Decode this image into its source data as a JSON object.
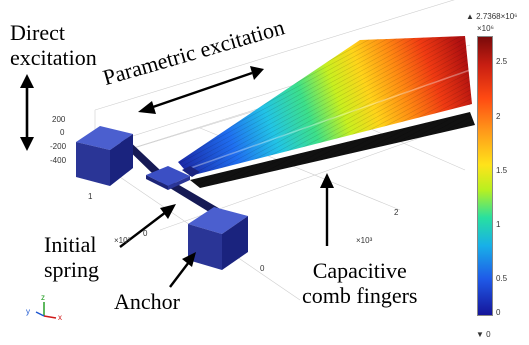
{
  "annotations": {
    "direct_excitation": [
      "Direct",
      "excitation"
    ],
    "parametric_excitation": "Parametric excitation",
    "initial_spring": [
      "Initial",
      "spring"
    ],
    "anchor": "Anchor",
    "capacitive_comb_fingers": [
      "Capacitive",
      "comb fingers"
    ]
  },
  "z_axis_ticks": [
    "200",
    "0",
    "-200",
    "-400"
  ],
  "axis_tick_labels": {
    "x_one": "1",
    "x_zero": "0",
    "x_scale": "×10³",
    "y_zero": "0",
    "y_two": "2",
    "y_scale": "×10³"
  },
  "triad": {
    "x": "x",
    "y": "y",
    "z": "z"
  },
  "colorbar": {
    "max_label": "▲ 2.7368×10⁶",
    "scale": "×10⁶",
    "ticks": [
      "2.5",
      "2",
      "1.5",
      "1",
      "0.5",
      "0"
    ],
    "min_label": "▼ 0"
  }
}
